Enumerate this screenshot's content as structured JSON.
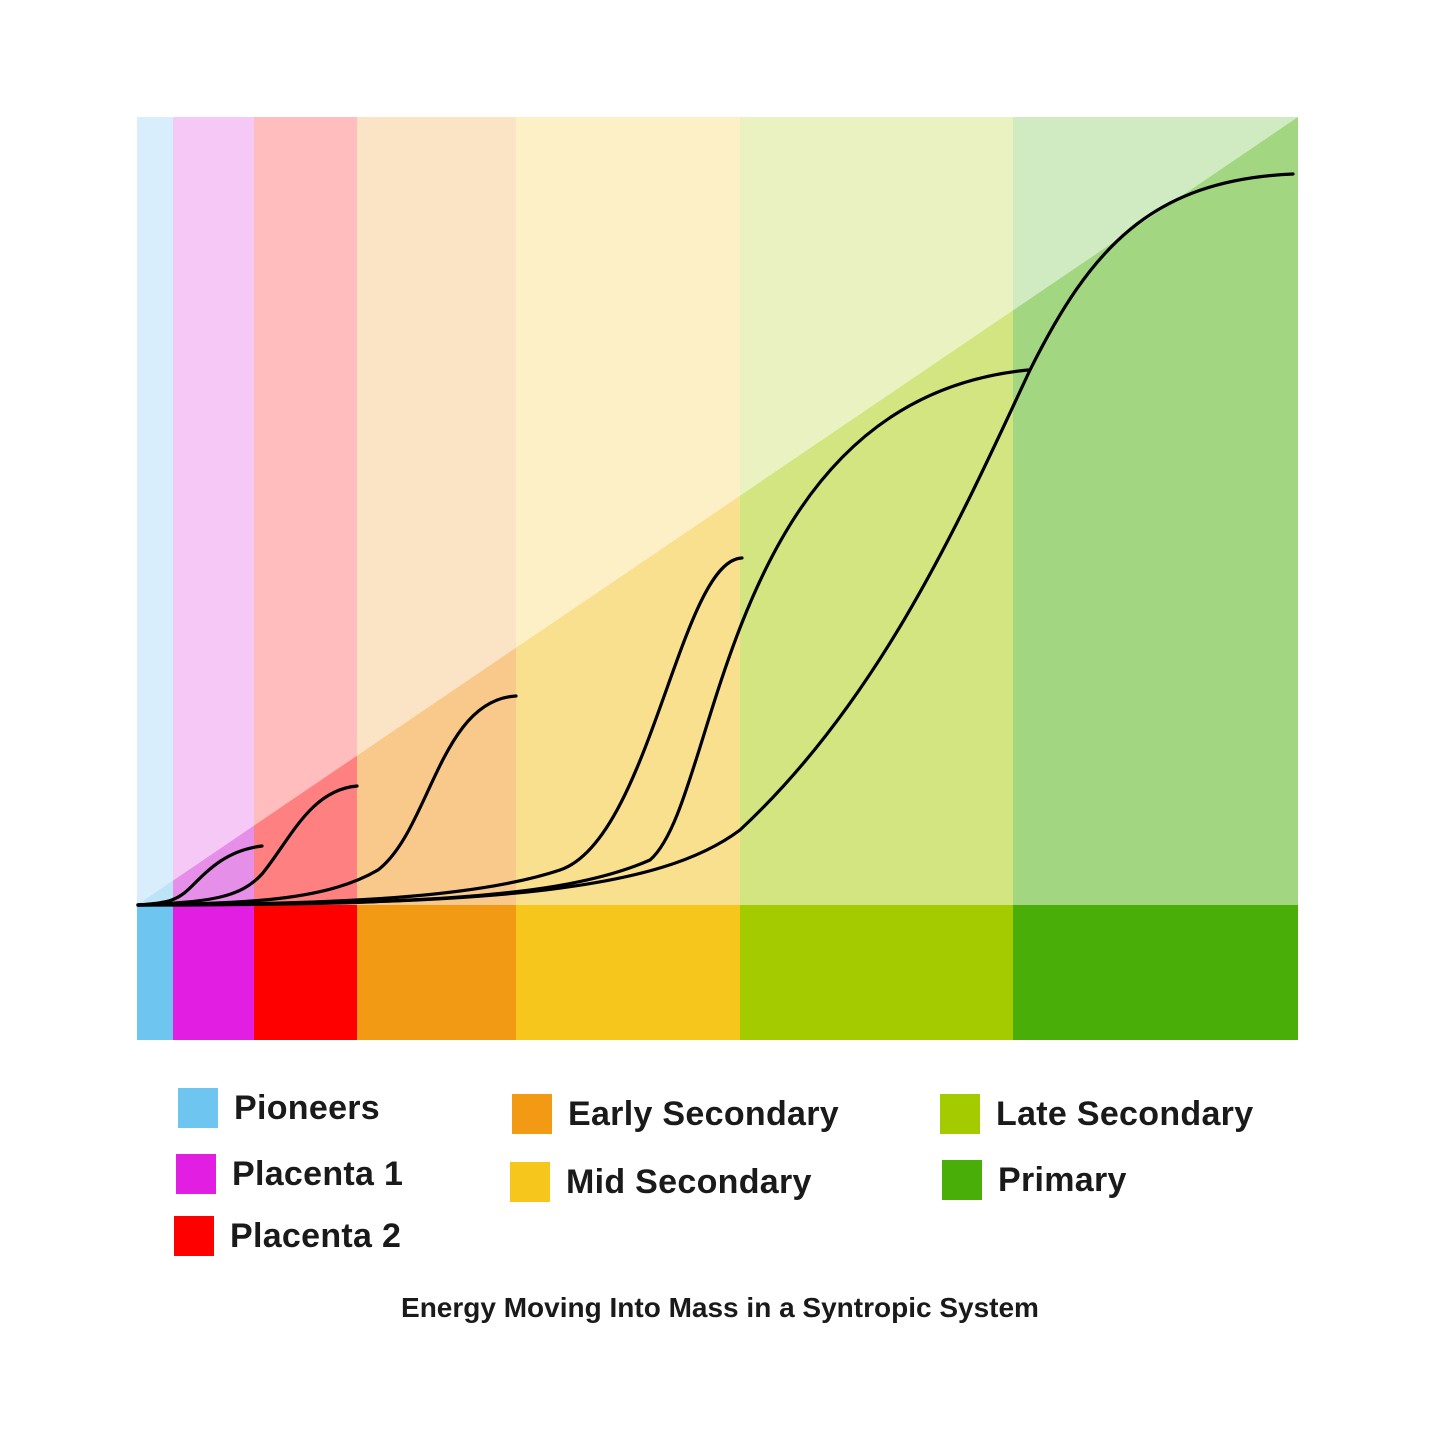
{
  "caption": "Energy Moving Into Mass in a Syntropic System",
  "stages": [
    {
      "label": "Pioneers",
      "color": "#6ec5f0",
      "light": "#d9eefc",
      "mid": "#bde3f7"
    },
    {
      "label": "Placenta 1",
      "color": "#e21ee2",
      "light": "#f5c8f5",
      "mid": "#e68fe8"
    },
    {
      "label": "Placenta 2",
      "color": "#ff0000",
      "light": "#ffbdbd",
      "mid": "#ff8080"
    },
    {
      "label": "Early Secondary",
      "color": "#f39a14",
      "light": "#fbe3c5",
      "mid": "#f8c98a"
    },
    {
      "label": "Mid Secondary",
      "color": "#f6c61d",
      "light": "#fdf0c6",
      "mid": "#f9e08f"
    },
    {
      "label": "Late Secondary",
      "color": "#a3cb00",
      "light": "#e9f2c0",
      "mid": "#d2e581"
    },
    {
      "label": "Primary",
      "color": "#4aae08",
      "light": "#d0eac2",
      "mid": "#a2d681"
    }
  ],
  "legend": [
    {
      "stage": 0
    },
    {
      "stage": 1
    },
    {
      "stage": 2
    },
    {
      "stage": 3
    },
    {
      "stage": 4
    },
    {
      "stage": 5
    },
    {
      "stage": 6
    }
  ]
}
